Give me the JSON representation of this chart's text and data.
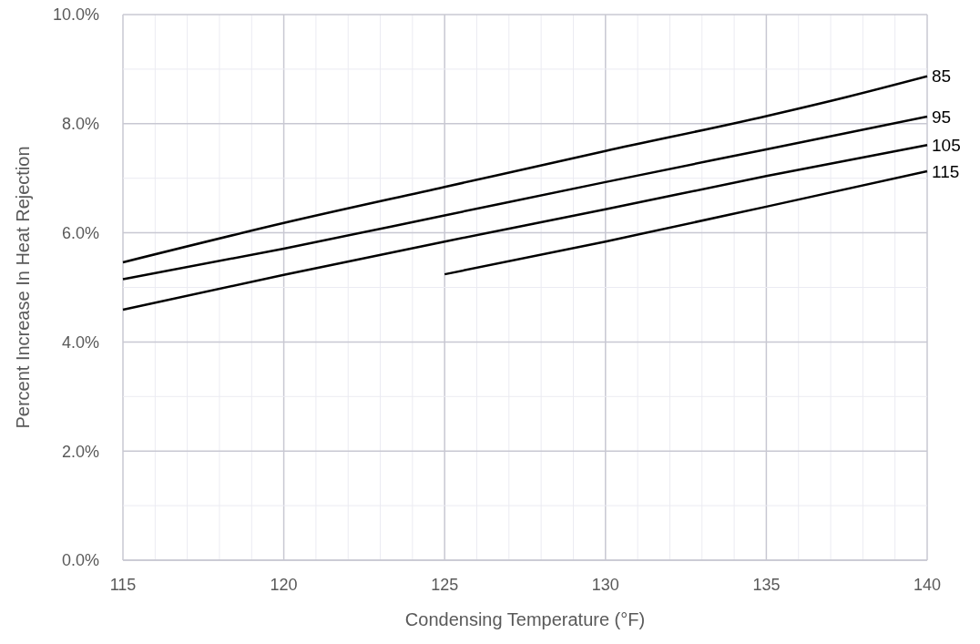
{
  "chart_data": {
    "type": "line",
    "xlabel": "Condensing Temperature (°F)",
    "ylabel": "Percent Increase In Heat Rejection",
    "x": [
      115,
      120,
      125,
      130,
      135,
      137.5,
      140
    ],
    "series": [
      {
        "name": "85",
        "color": "#000000",
        "values": [
          5.46,
          6.18,
          6.84,
          7.5,
          8.14,
          8.49,
          8.87
        ]
      },
      {
        "name": "95",
        "color": "#000000",
        "values": [
          5.15,
          5.71,
          6.32,
          6.93,
          7.53,
          null,
          8.13
        ]
      },
      {
        "name": "105",
        "color": "#000000",
        "values": [
          4.59,
          5.23,
          5.84,
          6.43,
          7.04,
          null,
          7.61
        ]
      },
      {
        "name": "115",
        "color": "#000000",
        "values": [
          null,
          null,
          5.24,
          5.84,
          6.48,
          null,
          7.13
        ]
      }
    ],
    "xlim": [
      115,
      140
    ],
    "xticks": [
      115,
      {
        "value": 116,
        "label": null
      },
      {
        "value": 117,
        "label": null
      },
      {
        "value": 118,
        "label": null
      },
      {
        "value": 119,
        "label": null
      },
      120,
      {
        "value": 121,
        "label": null
      },
      {
        "value": 122,
        "label": null
      },
      {
        "value": 123,
        "label": null
      },
      {
        "value": 124,
        "label": null
      },
      125,
      {
        "value": 126,
        "label": null
      },
      {
        "value": 127,
        "label": null
      },
      {
        "value": 128,
        "label": null
      },
      {
        "value": 129,
        "label": null
      },
      130,
      {
        "value": 131,
        "label": null
      },
      {
        "value": 132,
        "label": null
      },
      {
        "value": 133,
        "label": null
      },
      {
        "value": 134,
        "label": null
      },
      135,
      {
        "value": 136,
        "label": null
      },
      {
        "value": 137,
        "label": null
      },
      {
        "value": 138,
        "label": null
      },
      {
        "value": 139,
        "label": null
      },
      140
    ],
    "ylim": [
      0,
      10
    ],
    "yticks": [
      {
        "value": 0,
        "label": "0.0%"
      },
      {
        "value": 1,
        "label": null
      },
      {
        "value": 2,
        "label": "2.0%"
      },
      {
        "value": 3,
        "label": null
      },
      {
        "value": 4,
        "label": "4.0%"
      },
      {
        "value": 5,
        "label": null
      },
      {
        "value": 6,
        "label": "6.0%"
      },
      {
        "value": 7,
        "label": null
      },
      {
        "value": 8,
        "label": "8.0%"
      },
      {
        "value": 9,
        "label": null
      },
      {
        "value": 10,
        "label": "10.0%"
      }
    ],
    "grid": true,
    "marker": "none",
    "line_style": "solid"
  }
}
